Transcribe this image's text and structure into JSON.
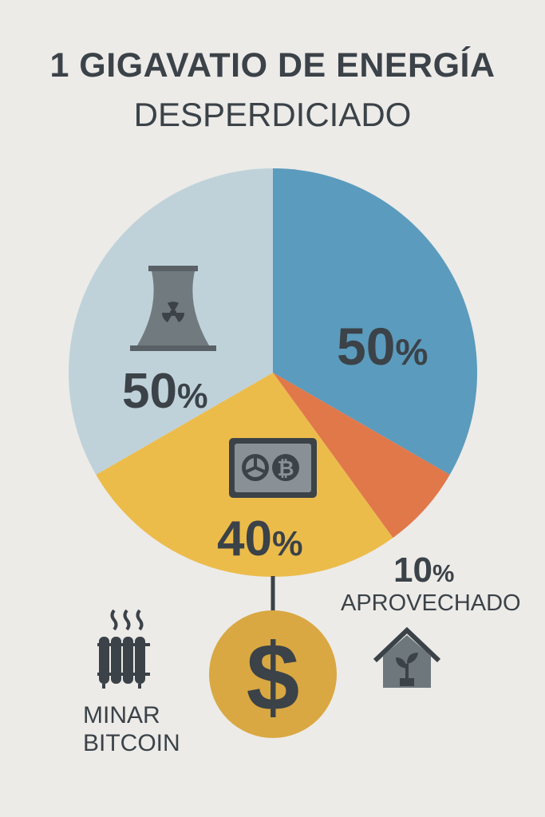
{
  "header": {
    "title": "1 GIGAVATIO DE ENERGÍA",
    "subtitle": "DESPERDICIADO"
  },
  "chart_data": {
    "type": "pie",
    "title": "1 GIGAVATIO DE ENERGÍA DESPERDICIADO",
    "slices": [
      {
        "label": "50%",
        "value": 50,
        "color": "#5b9bbd"
      },
      {
        "label": "10%",
        "value": 10,
        "color": "#e0784a"
      },
      {
        "label": "40%",
        "value": 40,
        "color": "#ecbc4b"
      },
      {
        "label": "50%",
        "value": 50,
        "color": "#bfd2d9"
      }
    ],
    "labels": {
      "blue": {
        "num": "50",
        "unit": "%"
      },
      "yellow": {
        "num": "40",
        "unit": "%"
      },
      "grey": {
        "num": "50",
        "unit": "%"
      },
      "orange": {
        "num": "10",
        "unit": "%"
      }
    },
    "annotations": {
      "orange_caption": "APROVECHADO",
      "mining_caption_line1": "MINAR",
      "mining_caption_line2": "BITCOIN"
    },
    "coin_symbol": "$"
  },
  "icons": {
    "nuclear": "nuclear-cooling-tower-icon",
    "mining": "bitcoin-mining-rig-icon",
    "heater": "radiator-heat-icon",
    "greenhouse": "greenhouse-plant-icon",
    "coin": "dollar-coin-icon"
  }
}
